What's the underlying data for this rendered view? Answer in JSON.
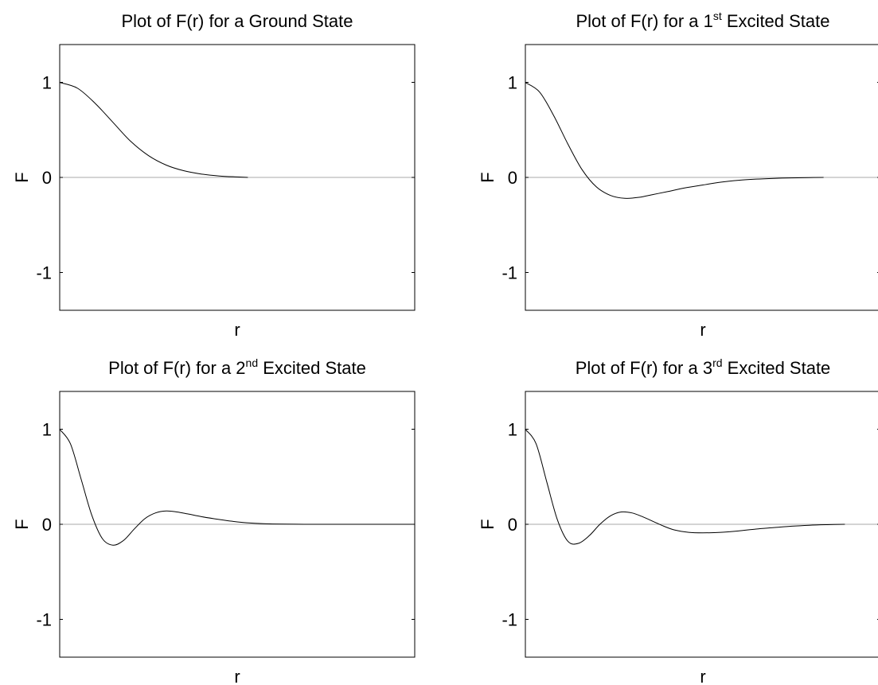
{
  "chart_data": [
    {
      "type": "line",
      "title": {
        "pre": "Plot of F(r) for a Ground State",
        "sup": "",
        "post": ""
      },
      "xlabel": "r",
      "ylabel": "F",
      "ylim": [
        -1.4,
        1.4
      ],
      "xlim": [
        0,
        10
      ],
      "yticks": [
        {
          "value": 1,
          "label": "1"
        },
        {
          "value": 0,
          "label": "0"
        },
        {
          "value": -1,
          "label": "-1"
        }
      ],
      "grid": false,
      "series": [
        {
          "x": [
            0.0,
            0.5,
            1.0,
            1.5,
            2.0,
            2.5,
            3.0,
            3.5,
            4.0,
            4.5,
            5.0,
            5.3
          ],
          "y": [
            1.0,
            0.94,
            0.78,
            0.58,
            0.38,
            0.23,
            0.13,
            0.07,
            0.035,
            0.015,
            0.005,
            0.0
          ]
        }
      ]
    },
    {
      "type": "line",
      "title": {
        "pre": "Plot of F(r) for a 1",
        "sup": "st",
        "post": " Excited State"
      },
      "xlabel": "r",
      "ylabel": "F",
      "ylim": [
        -1.4,
        1.4
      ],
      "xlim": [
        0,
        10
      ],
      "yticks": [
        {
          "value": 1,
          "label": "1"
        },
        {
          "value": 0,
          "label": "0"
        },
        {
          "value": -1,
          "label": "-1"
        }
      ],
      "grid": false,
      "series": [
        {
          "x": [
            0.0,
            0.4,
            0.8,
            1.2,
            1.6,
            2.0,
            2.4,
            2.8,
            3.2,
            3.6,
            4.0,
            4.5,
            5.0,
            5.5,
            6.0,
            6.5,
            7.0,
            7.5,
            8.0,
            8.4
          ],
          "y": [
            1.0,
            0.9,
            0.65,
            0.35,
            0.08,
            -0.1,
            -0.19,
            -0.22,
            -0.21,
            -0.18,
            -0.15,
            -0.11,
            -0.08,
            -0.05,
            -0.03,
            -0.018,
            -0.01,
            -0.005,
            -0.002,
            0.0
          ]
        }
      ]
    },
    {
      "type": "line",
      "title": {
        "pre": "Plot of F(r) for a 2",
        "sup": "nd",
        "post": " Excited State"
      },
      "xlabel": "r",
      "ylabel": "F",
      "ylim": [
        -1.4,
        1.4
      ],
      "xlim": [
        0,
        10
      ],
      "yticks": [
        {
          "value": 1,
          "label": "1"
        },
        {
          "value": 0,
          "label": "0"
        },
        {
          "value": -1,
          "label": "-1"
        }
      ],
      "grid": false,
      "series": [
        {
          "x": [
            0.0,
            0.3,
            0.6,
            0.9,
            1.2,
            1.5,
            1.8,
            2.1,
            2.4,
            2.7,
            3.0,
            3.3,
            3.6,
            4.0,
            4.5,
            5.0,
            5.5,
            6.0,
            7.0,
            8.0,
            9.0,
            10.0
          ],
          "y": [
            1.0,
            0.85,
            0.48,
            0.1,
            -0.15,
            -0.22,
            -0.17,
            -0.05,
            0.06,
            0.12,
            0.14,
            0.13,
            0.11,
            0.08,
            0.05,
            0.025,
            0.01,
            0.003,
            0.0,
            0.0,
            0.0,
            0.0
          ]
        }
      ]
    },
    {
      "type": "line",
      "title": {
        "pre": "Plot of F(r) for a 3",
        "sup": "rd",
        "post": " Excited State"
      },
      "xlabel": "r",
      "ylabel": "F",
      "ylim": [
        -1.4,
        1.4
      ],
      "xlim": [
        0,
        10
      ],
      "yticks": [
        {
          "value": 1,
          "label": "1"
        },
        {
          "value": 0,
          "label": "0"
        },
        {
          "value": -1,
          "label": "-1"
        }
      ],
      "grid": false,
      "series": [
        {
          "x": [
            0.0,
            0.3,
            0.6,
            0.9,
            1.2,
            1.5,
            1.8,
            2.1,
            2.4,
            2.7,
            3.0,
            3.3,
            3.6,
            3.9,
            4.2,
            4.6,
            5.0,
            5.5,
            6.0,
            6.5,
            7.0,
            7.5,
            8.0,
            8.5,
            9.0
          ],
          "y": [
            1.0,
            0.85,
            0.45,
            0.05,
            -0.18,
            -0.2,
            -0.12,
            0.0,
            0.09,
            0.13,
            0.12,
            0.08,
            0.03,
            -0.02,
            -0.06,
            -0.085,
            -0.09,
            -0.085,
            -0.07,
            -0.05,
            -0.035,
            -0.02,
            -0.01,
            -0.004,
            0.0
          ]
        }
      ]
    }
  ]
}
